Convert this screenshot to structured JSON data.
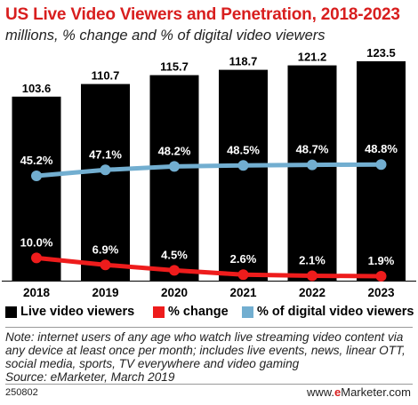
{
  "title": "US Live Video Viewers and Penetration, 2018-2023",
  "subtitle": "millions, % change and % of digital video viewers",
  "chart_data": {
    "type": "bar",
    "categories": [
      "2018",
      "2019",
      "2020",
      "2021",
      "2022",
      "2023"
    ],
    "series": [
      {
        "name": "Live video viewers",
        "type": "bar",
        "values": [
          103.6,
          110.7,
          115.7,
          118.7,
          121.2,
          123.5
        ],
        "labels": [
          "103.6",
          "110.7",
          "115.7",
          "118.7",
          "121.2",
          "123.5"
        ],
        "color": "#000000"
      },
      {
        "name": "% change",
        "type": "line",
        "values": [
          10.0,
          6.9,
          4.5,
          2.6,
          2.1,
          1.9
        ],
        "labels": [
          "10.0%",
          "6.9%",
          "4.5%",
          "2.6%",
          "2.1%",
          "1.9%"
        ],
        "color": "#ee1c1c"
      },
      {
        "name": "% of digital video viewers",
        "type": "line",
        "values": [
          45.2,
          47.1,
          48.2,
          48.5,
          48.7,
          48.8
        ],
        "labels": [
          "45.2%",
          "47.1%",
          "48.2%",
          "48.5%",
          "48.7%",
          "48.8%"
        ],
        "color": "#72aed0"
      }
    ],
    "legend_position": "bottom",
    "grid": false
  },
  "legend": {
    "items": [
      {
        "label": "Live video viewers",
        "color": "#000000"
      },
      {
        "label": "% change",
        "color": "#ee1c1c"
      },
      {
        "label": "% of digital video viewers",
        "color": "#72aed0"
      }
    ]
  },
  "note": {
    "line1": "Note: internet users of any age who watch live streaming video content via",
    "line2": "any device at least once per month; includes live events, news, linear OTT,",
    "line3": "social media, sports, TV everywhere and video gaming",
    "line4": "Source: eMarketer, March 2019"
  },
  "footer": {
    "id": "250802",
    "brand_prefix": "www.",
    "brand_e": "e",
    "brand_suffix": "Marketer.com"
  }
}
